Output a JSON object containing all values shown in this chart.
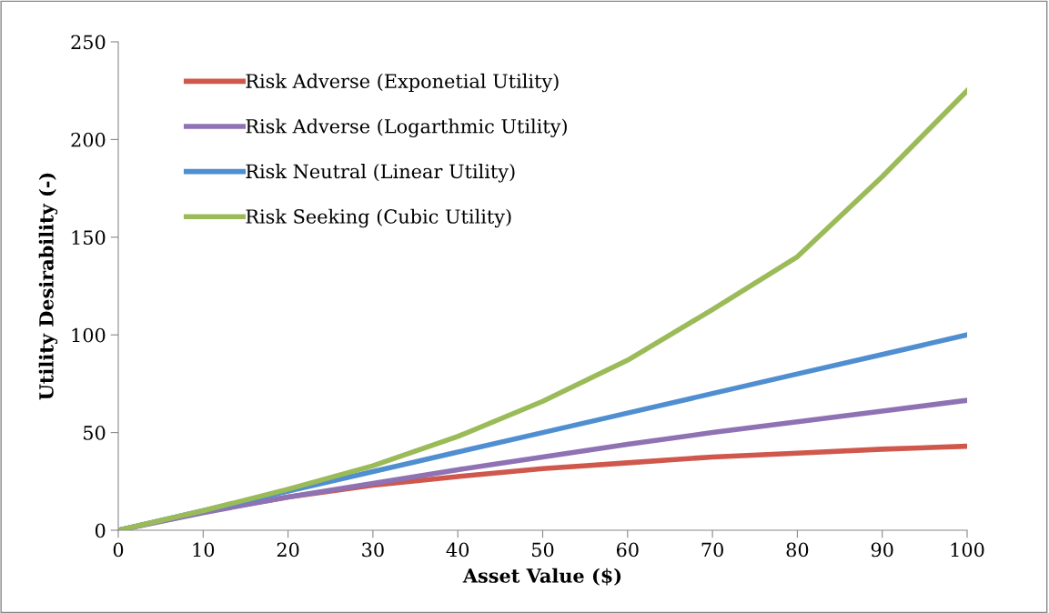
{
  "chart_data": {
    "type": "line",
    "xlabel": "Asset Value ($)",
    "ylabel": "Utility Desirability (-)",
    "x": [
      0,
      10,
      20,
      30,
      40,
      50,
      60,
      70,
      80,
      90,
      100
    ],
    "series": [
      {
        "name": "Risk Adverse (Exponetial Utility)",
        "color": "#d0574b",
        "values": [
          0,
          9.5,
          17,
          23,
          27.5,
          31.5,
          34.5,
          37.5,
          39.5,
          41.5,
          43
        ]
      },
      {
        "name": "Risk Adverse (Logarthmic Utility)",
        "color": "#8e72b3",
        "values": [
          0,
          9,
          17,
          24,
          31,
          37.5,
          44,
          50,
          55.5,
          61,
          66.5
        ]
      },
      {
        "name": "Risk Neutral (Linear Utility)",
        "color": "#4f8ed0",
        "values": [
          0,
          10,
          20,
          30,
          40,
          50,
          60,
          70,
          80,
          90,
          100
        ]
      },
      {
        "name": "Risk Seeking (Cubic Utility)",
        "color": "#9bbb59",
        "values": [
          0,
          10,
          21,
          33,
          48,
          66,
          87,
          113,
          140,
          181,
          225
        ]
      }
    ],
    "xlim": [
      0,
      100
    ],
    "xticks": [
      0,
      10,
      20,
      30,
      40,
      50,
      60,
      70,
      80,
      90,
      100
    ],
    "ylim": [
      0,
      250
    ],
    "yticks": [
      0,
      50,
      100,
      150,
      200,
      250
    ],
    "grid": false,
    "legend": "top left",
    "marker": "none",
    "line_style": "solid"
  }
}
